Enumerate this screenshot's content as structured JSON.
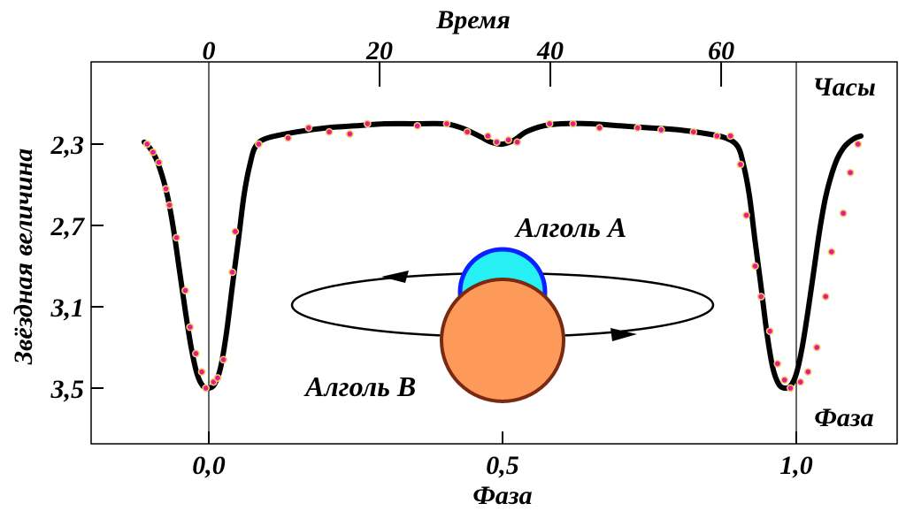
{
  "chart_data": {
    "type": "line",
    "title": "",
    "xlabel": "Фаза",
    "ylabel": "Звёздная величина",
    "top_axis_label": "Время",
    "top_axis_unit": "Часы",
    "phase_marker_label": "Фаза",
    "x_ticks": [
      "0,0",
      "0,5",
      "1,0"
    ],
    "x_tick_values": [
      0.0,
      0.5,
      1.0
    ],
    "top_ticks": [
      "0",
      "20",
      "40",
      "60"
    ],
    "top_tick_values": [
      0,
      20,
      40,
      60
    ],
    "y_ticks": [
      "2,3",
      "2,7",
      "3,1",
      "3,5"
    ],
    "y_tick_values": [
      2.3,
      2.7,
      3.1,
      3.5
    ],
    "xlim": [
      -0.2,
      1.15
    ],
    "ylim": [
      2.0,
      3.75
    ],
    "y_inverted": true,
    "grid": false,
    "period_hours": 68.8,
    "series": [
      {
        "values_x": [
          -0.11,
          -0.1,
          -0.09,
          -0.08,
          -0.07,
          -0.06,
          -0.05,
          -0.04,
          -0.03,
          -0.02,
          -0.01,
          0.0,
          0.01,
          0.02,
          0.03,
          0.04,
          0.05,
          0.06,
          0.07,
          0.08,
          0.1,
          0.15,
          0.2,
          0.25,
          0.3,
          0.35,
          0.4,
          0.43,
          0.46,
          0.48,
          0.5,
          0.52,
          0.54,
          0.57,
          0.6,
          0.65,
          0.7,
          0.75,
          0.8,
          0.85,
          0.88,
          0.9,
          0.91,
          0.92,
          0.93,
          0.94,
          0.95,
          0.96,
          0.97,
          0.98,
          0.99,
          1.0,
          1.01,
          1.02,
          1.03,
          1.04,
          1.05,
          1.06,
          1.07,
          1.08,
          1.09,
          1.1,
          1.11
        ],
        "values_y": [
          2.29,
          2.32,
          2.37,
          2.45,
          2.56,
          2.72,
          2.92,
          3.12,
          3.3,
          3.43,
          3.49,
          3.5,
          3.48,
          3.4,
          3.23,
          3.0,
          2.78,
          2.55,
          2.4,
          2.31,
          2.27,
          2.24,
          2.22,
          2.21,
          2.2,
          2.2,
          2.2,
          2.22,
          2.26,
          2.29,
          2.3,
          2.28,
          2.24,
          2.21,
          2.2,
          2.2,
          2.21,
          2.22,
          2.23,
          2.25,
          2.27,
          2.31,
          2.4,
          2.55,
          2.78,
          3.0,
          3.23,
          3.4,
          3.48,
          3.5,
          3.49,
          3.43,
          3.3,
          3.12,
          2.92,
          2.72,
          2.56,
          2.45,
          2.37,
          2.32,
          2.29,
          2.27,
          2.26
        ]
      },
      {
        "points_x": [
          -0.105,
          -0.095,
          -0.085,
          -0.073,
          -0.067,
          -0.055,
          -0.04,
          -0.032,
          -0.022,
          -0.012,
          -0.005,
          0.008,
          0.015,
          0.025,
          0.04,
          0.045,
          0.085,
          0.135,
          0.17,
          0.205,
          0.24,
          0.27,
          0.355,
          0.405,
          0.44,
          0.475,
          0.49,
          0.51,
          0.525,
          0.58,
          0.62,
          0.665,
          0.73,
          0.77,
          0.825,
          0.865,
          0.888,
          0.905,
          0.915,
          0.93,
          0.94,
          0.955,
          0.968,
          0.98,
          0.99,
          1.007,
          1.02,
          1.035,
          1.05,
          1.06,
          1.08,
          1.092,
          1.105
        ],
        "points_y": [
          2.3,
          2.34,
          2.39,
          2.52,
          2.6,
          2.76,
          3.02,
          3.2,
          3.33,
          3.42,
          3.5,
          3.47,
          3.45,
          3.36,
          2.93,
          2.73,
          2.3,
          2.27,
          2.22,
          2.24,
          2.25,
          2.2,
          2.21,
          2.2,
          2.24,
          2.26,
          2.29,
          2.28,
          2.29,
          2.2,
          2.2,
          2.22,
          2.22,
          2.23,
          2.24,
          2.26,
          2.26,
          2.4,
          2.65,
          2.9,
          3.05,
          3.22,
          3.38,
          3.46,
          3.5,
          3.47,
          3.42,
          3.3,
          3.05,
          2.83,
          2.64,
          2.44,
          2.3
        ]
      }
    ],
    "colors": {
      "curve": "#000000",
      "points": "#e8189a",
      "points_edge": "#f2d060",
      "star_a": "#27f0f5",
      "star_a_edge": "#0a20ff",
      "star_b": "#fd9a5a",
      "star_b_edge": "#7a2a10"
    },
    "annotations": {
      "star_a_label": "Алголь А",
      "star_b_label": "Алголь В"
    }
  }
}
